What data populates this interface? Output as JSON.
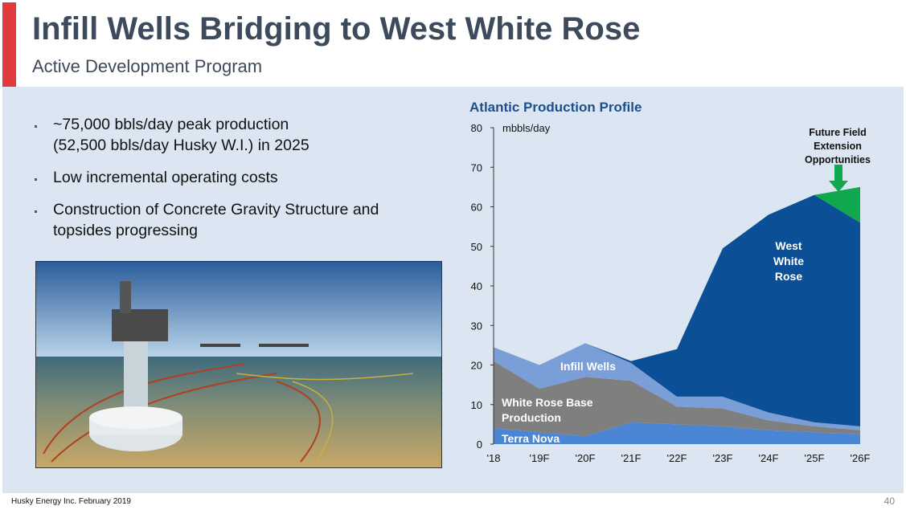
{
  "header": {
    "title": "Infill Wells Bridging to West White Rose",
    "subtitle": "Active Development Program"
  },
  "bullets": [
    {
      "lines": [
        "~75,000 bbls/day peak production",
        "(52,500 bbls/day Husky W.I.) in 2025"
      ]
    },
    {
      "lines": [
        "Low incremental operating costs"
      ]
    },
    {
      "lines": [
        "Construction of Concrete Gravity Structure and",
        "topsides progressing"
      ]
    }
  ],
  "footer": {
    "text": "Husky Energy Inc. February 2019",
    "page": "40"
  },
  "chart_data": {
    "type": "stacked_area",
    "title": "Atlantic Production Profile",
    "y_label": "mbbls/day",
    "categories": [
      "'18",
      "'19F",
      "'20F",
      "'21F",
      "'22F",
      "'23F",
      "'24F",
      "'25F",
      "'26F"
    ],
    "series": [
      {
        "name": "Terra Nova",
        "color": "#4a86d4",
        "values": [
          4,
          3,
          2,
          5.5,
          5,
          4.5,
          3.5,
          3,
          2.5
        ]
      },
      {
        "name": "White Rose Base Production",
        "color": "#7f7f7f",
        "values": [
          17,
          11,
          15,
          10.5,
          4.5,
          4.5,
          2.5,
          1.5,
          1
        ]
      },
      {
        "name": "Infill Wells",
        "color": "#7a9ed8",
        "values": [
          3.5,
          6,
          8.5,
          4.5,
          2.5,
          3,
          2,
          1,
          1
        ]
      },
      {
        "name": "West White Rose",
        "color": "#0b4f96",
        "values": [
          0,
          0,
          0,
          0.5,
          12,
          37.5,
          50,
          57.5,
          51.5
        ]
      },
      {
        "name": "Future Field Extension Opportunities",
        "color": "#10a84e",
        "values": [
          0,
          0,
          0,
          0,
          0,
          0,
          0,
          0,
          9
        ]
      }
    ],
    "ylim": [
      0,
      80
    ],
    "yticks": [
      0,
      10,
      20,
      30,
      40,
      50,
      60,
      70,
      80
    ]
  }
}
